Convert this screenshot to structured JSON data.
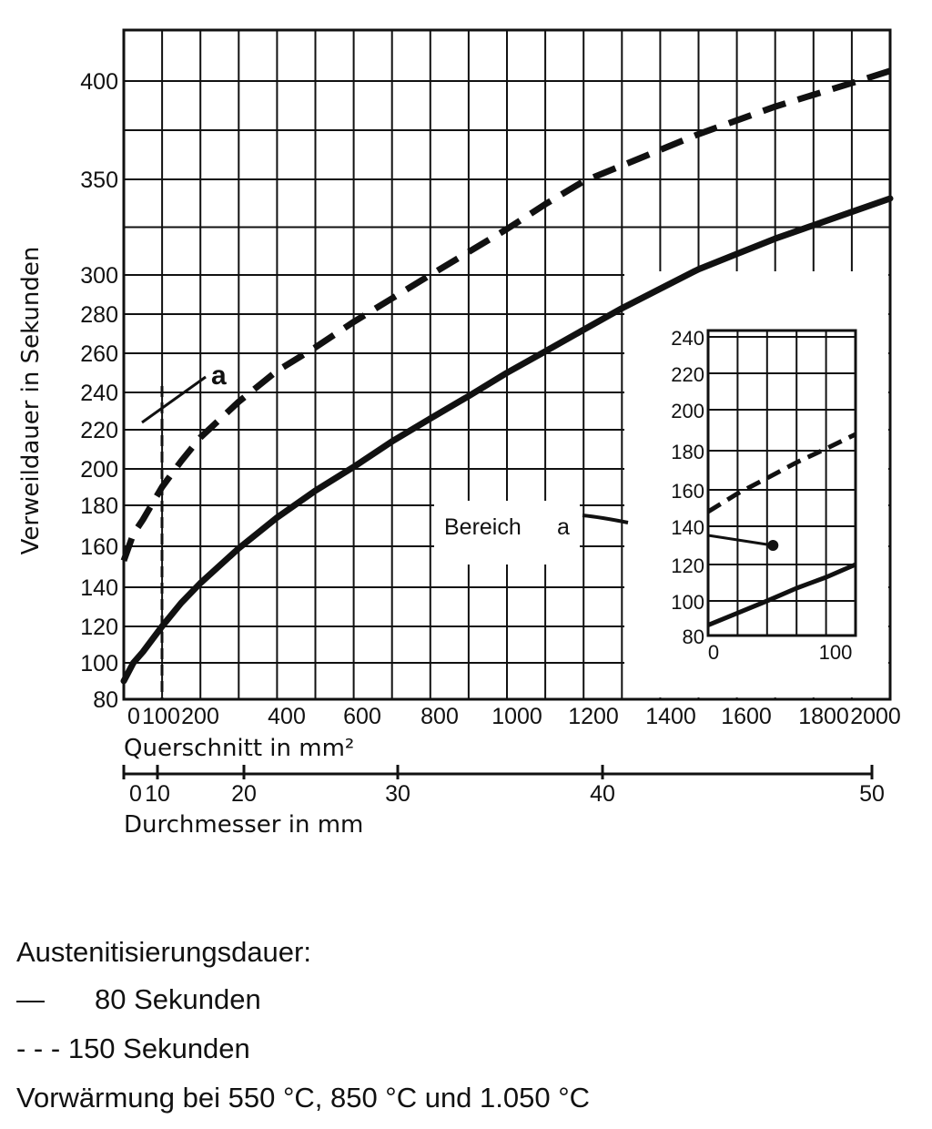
{
  "chart_data": {
    "type": "line",
    "ylabel": "Verweildauer in Sekunden",
    "xlabel": "Querschnitt in mm²",
    "x2label": "Durchmesser in mm",
    "xlim": [
      0,
      2000
    ],
    "ylim": [
      80,
      425
    ],
    "x_ticks": [
      "0",
      "100",
      "200",
      "400",
      "600",
      "800",
      "1000",
      "1200",
      "1400",
      "1600",
      "1800",
      "2000"
    ],
    "y_ticks": [
      {
        "label": "80",
        "value": 80
      },
      {
        "label": "100",
        "value": 100
      },
      {
        "label": "120",
        "value": 120
      },
      {
        "label": "140",
        "value": 140
      },
      {
        "label": "160",
        "value": 160
      },
      {
        "label": "180",
        "value": 180
      },
      {
        "label": "200",
        "value": 200
      },
      {
        "label": "220",
        "value": 220
      },
      {
        "label": "240",
        "value": 240
      },
      {
        "label": "260",
        "value": 260
      },
      {
        "label": "280",
        "value": 280
      },
      {
        "label": "300",
        "value": 300
      },
      {
        "label": "350",
        "value": 350
      },
      {
        "label": "400",
        "value": 400
      }
    ],
    "x2_ticks": [
      {
        "label": "0",
        "value": 0
      },
      {
        "label": "10",
        "value": 10
      },
      {
        "label": "20",
        "value": 20
      },
      {
        "label": "30",
        "value": 30
      },
      {
        "label": "40",
        "value": 40
      },
      {
        "label": "50",
        "value": 50
      }
    ],
    "series": [
      {
        "name": "80 Sekunden",
        "style": "solid",
        "x": [
          0,
          25,
          50,
          100,
          150,
          200,
          300,
          400,
          500,
          600,
          700,
          800,
          900,
          1000,
          1100,
          1200,
          1300,
          1400,
          1500,
          1600,
          1700,
          1800,
          1900,
          2000
        ],
        "y": [
          90,
          100,
          106,
          120,
          132,
          142,
          159,
          174,
          188,
          201,
          214,
          226,
          238,
          250,
          261,
          272,
          283,
          293,
          303,
          311,
          319,
          326,
          333,
          340
        ]
      },
      {
        "name": "150 Sekunden",
        "style": "dashed",
        "x": [
          0,
          25,
          50,
          100,
          150,
          200,
          300,
          400,
          500,
          600,
          700,
          800,
          900,
          1000,
          1100,
          1200,
          1300,
          1400,
          1500,
          1600,
          1700,
          1800,
          1900,
          2000
        ],
        "y": [
          153,
          166,
          173,
          190,
          204,
          216,
          235,
          251,
          263,
          276,
          288,
          300,
          312,
          324,
          337,
          349,
          357,
          365,
          373,
          380,
          387,
          393,
          399,
          405
        ]
      }
    ],
    "annotations": [
      {
        "label": "a",
        "x": 230,
        "y": 245
      },
      {
        "label": "Bereich",
        "x": 930,
        "y": 160
      },
      {
        "label": "a",
        "x": 1140,
        "y": 160
      }
    ],
    "inset": {
      "label": "Bereich a",
      "xlim": [
        0,
        100
      ],
      "ylim": [
        80,
        240
      ],
      "x_ticks": [
        {
          "label": "0",
          "value": 0
        },
        {
          "label": "100",
          "value": 100
        }
      ],
      "y_ticks": [
        {
          "label": "80",
          "value": 80
        },
        {
          "label": "100",
          "value": 100
        },
        {
          "label": "120",
          "value": 120
        },
        {
          "label": "140",
          "value": 140
        },
        {
          "label": "160",
          "value": 160
        },
        {
          "label": "180",
          "value": 180
        },
        {
          "label": "200",
          "value": 200
        },
        {
          "label": "220",
          "value": 220
        },
        {
          "label": "240",
          "value": 240
        }
      ],
      "series": [
        {
          "name": "80 Sekunden",
          "style": "solid",
          "x": [
            0,
            20,
            40,
            60,
            80,
            100
          ],
          "y": [
            86,
            93,
            100,
            107,
            113,
            120
          ]
        },
        {
          "name": "150 Sekunden",
          "style": "dashed",
          "x": [
            0,
            20,
            40,
            60,
            80,
            100
          ],
          "y": [
            148,
            158,
            166,
            174,
            181,
            188
          ]
        }
      ],
      "marker": {
        "x": 44,
        "y": 130
      }
    },
    "grid": true
  },
  "caption": {
    "title": "Austenitisierungsdauer:",
    "legend": [
      {
        "marker": "—",
        "text": "80 Sekunden"
      },
      {
        "marker": "- - -",
        "text": "150 Sekunden"
      }
    ],
    "footnote": "Vorwärmung bei 550 °C, 850 °C und 1.050 °C"
  },
  "colors": {
    "ink": "#111111",
    "background": "#ffffff"
  }
}
